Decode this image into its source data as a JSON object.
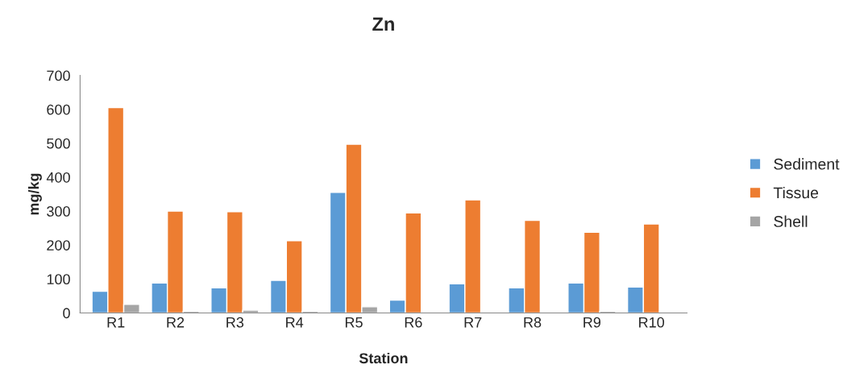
{
  "chart_data": {
    "type": "bar",
    "title": "Zn",
    "xlabel": "Station",
    "ylabel": "mg/kg",
    "categories": [
      "R1",
      "R2",
      "R3",
      "R4",
      "R5",
      "R6",
      "R7",
      "R8",
      "R9",
      "R10"
    ],
    "series": [
      {
        "name": "Sediment",
        "color": "#5b9bd5",
        "values": [
          64,
          88,
          74,
          96,
          355,
          38,
          86,
          74,
          88,
          76
        ]
      },
      {
        "name": "Tissue",
        "color": "#ed7d31",
        "values": [
          605,
          300,
          298,
          213,
          497,
          295,
          333,
          273,
          238,
          262
        ]
      },
      {
        "name": "Shell",
        "color": "#a5a5a5",
        "values": [
          25,
          5,
          8,
          5,
          18,
          2,
          null,
          null,
          5,
          null
        ]
      }
    ],
    "ylim": [
      0,
      700
    ],
    "yticks": [
      0,
      100,
      200,
      300,
      400,
      500,
      600,
      700
    ],
    "grid": false,
    "legend": "right"
  }
}
